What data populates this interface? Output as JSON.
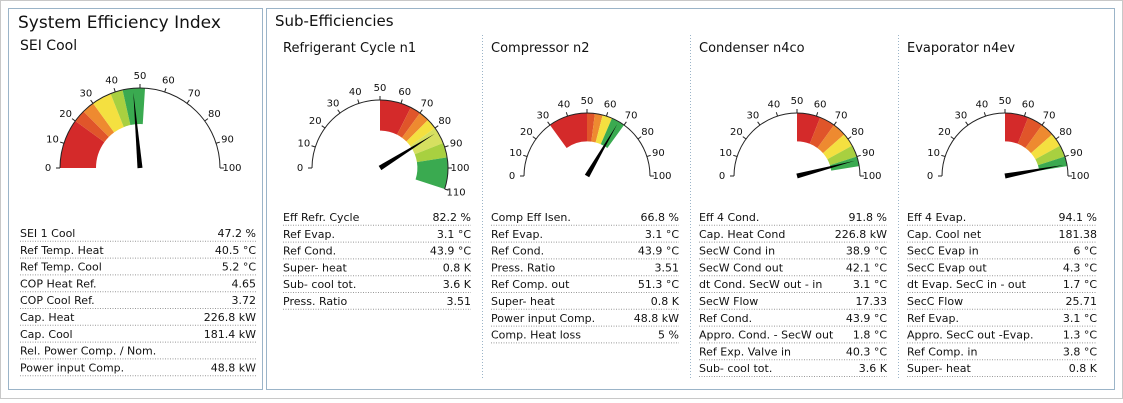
{
  "panels": [
    {
      "title": "System Efficiency Index",
      "gauges": [
        {
          "title": "SEI Cool",
          "value": 47.2,
          "ticks": [
            0,
            10,
            20,
            30,
            40,
            50,
            60,
            70,
            80,
            90,
            100
          ],
          "bands": [
            {
              "from": 0,
              "to": 20,
              "color": "#d42a2a"
            },
            {
              "from": 20,
              "to": 25,
              "color": "#e0552a"
            },
            {
              "from": 25,
              "to": 30,
              "color": "#ee8a30"
            },
            {
              "from": 30,
              "to": 38,
              "color": "#f4e040"
            },
            {
              "from": 38,
              "to": 43,
              "color": "#a8d040"
            },
            {
              "from": 43,
              "to": 52,
              "color": "#3aaa50"
            }
          ],
          "rows": [
            [
              "SEI 1 Cool",
              "47.2 %"
            ],
            [
              "Ref Temp. Heat",
              "40.5 °C"
            ],
            [
              "Ref Temp. Cool",
              "5.2 °C"
            ],
            [
              "COP Heat Ref.",
              "4.65"
            ],
            [
              "COP Cool Ref.",
              "3.72"
            ],
            [
              "Cap. Heat",
              "226.8 kW"
            ],
            [
              "Cap. Cool",
              "181.4 kW"
            ],
            [
              "Rel. Power Comp. / Nom."
            ],
            [
              "Power input Comp.",
              "48.8 kW"
            ]
          ]
        }
      ]
    },
    {
      "title": "Sub-Efficiencies",
      "gauges": [
        {
          "title": "Refrigerant Cycle n1",
          "value": 82.2,
          "ticks": [
            0,
            10,
            20,
            30,
            40,
            50,
            60,
            70,
            80,
            90,
            100,
            110
          ],
          "bands": [
            {
              "from": 50,
              "to": 65,
              "color": "#d42a2a"
            },
            {
              "from": 65,
              "to": 70,
              "color": "#e0552a"
            },
            {
              "from": 70,
              "to": 75,
              "color": "#ee8a30"
            },
            {
              "from": 75,
              "to": 80,
              "color": "#f4e040"
            },
            {
              "from": 80,
              "to": 88,
              "color": "#d6e060"
            },
            {
              "from": 88,
              "to": 95,
              "color": "#a8d040"
            },
            {
              "from": 95,
              "to": 110,
              "color": "#3aaa50"
            }
          ],
          "rows": [
            [
              "Eff Refr. Cycle",
              "82.2 %"
            ],
            [
              "Ref Evap.",
              "3.1 °C"
            ],
            [
              "Ref Cond.",
              "43.9 °C"
            ],
            [
              "Super- heat",
              "0.8 K"
            ],
            [
              "Sub- cool tot.",
              "3.6 K"
            ],
            [
              "Press. Ratio",
              "3.51"
            ]
          ]
        },
        {
          "title": "Compressor n2",
          "value": 66.8,
          "ticks": [
            0,
            10,
            20,
            30,
            40,
            50,
            60,
            70,
            80,
            90,
            100
          ],
          "bands": [
            {
              "from": 30,
              "to": 50,
              "color": "#d42a2a"
            },
            {
              "from": 50,
              "to": 54,
              "color": "#e0552a"
            },
            {
              "from": 54,
              "to": 58,
              "color": "#ee8a30"
            },
            {
              "from": 58,
              "to": 63,
              "color": "#f4e040"
            },
            {
              "from": 63,
              "to": 70,
              "color": "#3aaa50"
            }
          ],
          "rows": [
            [
              "Comp Eff Isen.",
              "66.8 %"
            ],
            [
              "Ref Evap.",
              "3.1 °C"
            ],
            [
              "Ref Cond.",
              "43.9 °C"
            ],
            [
              "Press. Ratio",
              "3.51"
            ],
            [
              "Ref Comp. out",
              "51.3 °C"
            ],
            [
              "Super- heat",
              "0.8 K"
            ],
            [
              "Power input Comp.",
              "48.8 kW"
            ],
            [
              "Comp. Heat loss",
              "5 %"
            ]
          ]
        },
        {
          "title": "Condenser n4co",
          "value": 91.8,
          "ticks": [
            0,
            10,
            20,
            30,
            40,
            50,
            60,
            70,
            80,
            90,
            100
          ],
          "bands": [
            {
              "from": 50,
              "to": 62,
              "color": "#d42a2a"
            },
            {
              "from": 62,
              "to": 70,
              "color": "#e0552a"
            },
            {
              "from": 70,
              "to": 77,
              "color": "#ee8a30"
            },
            {
              "from": 77,
              "to": 84,
              "color": "#f4e040"
            },
            {
              "from": 84,
              "to": 90,
              "color": "#a8d040"
            },
            {
              "from": 90,
              "to": 95,
              "color": "#3aaa50"
            }
          ],
          "rows": [
            [
              "Eff 4 Cond.",
              "91.8 %"
            ],
            [
              "Cap. Heat Cond",
              "226.8 kW"
            ],
            [
              "SecW Cond in",
              "38.9 °C"
            ],
            [
              "SecW Cond out",
              "42.1 °C"
            ],
            [
              "dt Cond. SecW out - in",
              "3.1 °C"
            ],
            [
              "SecW Flow",
              "17.33"
            ],
            [
              "Ref Cond.",
              "43.9 °C"
            ],
            [
              "Appro. Cond. - SecW out",
              "1.8 °C"
            ],
            [
              "Ref Exp. Valve in",
              "40.3 °C"
            ],
            [
              "Sub- cool tot.",
              "3.6 K"
            ]
          ]
        },
        {
          "title": "Evaporator n4ev",
          "value": 94.1,
          "ticks": [
            0,
            10,
            20,
            30,
            40,
            50,
            60,
            70,
            80,
            90,
            100
          ],
          "bands": [
            {
              "from": 50,
              "to": 62,
              "color": "#d42a2a"
            },
            {
              "from": 62,
              "to": 70,
              "color": "#e0552a"
            },
            {
              "from": 70,
              "to": 77,
              "color": "#ee8a30"
            },
            {
              "from": 77,
              "to": 84,
              "color": "#f4e040"
            },
            {
              "from": 84,
              "to": 90,
              "color": "#a8d040"
            },
            {
              "from": 90,
              "to": 95,
              "color": "#3aaa50"
            }
          ],
          "rows": [
            [
              "Eff 4 Evap.",
              "94.1 %"
            ],
            [
              "Cap. Cool net",
              "181.38"
            ],
            [
              "SecC Evap in",
              "6 °C"
            ],
            [
              "SecC Evap out",
              "4.3 °C"
            ],
            [
              "dt Evap. SecC in - out",
              "1.7 °C"
            ],
            [
              "SecC Flow",
              "25.71"
            ],
            [
              "Ref Evap.",
              "3.1 °C"
            ],
            [
              "Appro. SecC out -Evap.",
              "1.3 °C"
            ],
            [
              "Ref Comp. in",
              "3.8 °C"
            ],
            [
              "Super- heat",
              "0.8 K"
            ]
          ]
        }
      ]
    }
  ]
}
